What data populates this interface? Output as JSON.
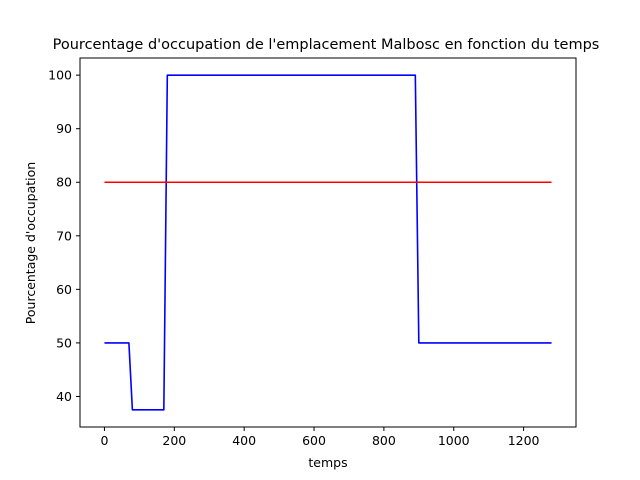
{
  "chart_data": {
    "type": "line",
    "title": "Pourcentage d'occupation de l'emplacement Malbosc en fonction du temps",
    "xlabel": "temps",
    "ylabel": "Pourcentage d'occupation",
    "xlim": [
      -70,
      1350
    ],
    "ylim": [
      34.3,
      103.2
    ],
    "xticks": [
      0,
      200,
      400,
      600,
      800,
      1000,
      1200
    ],
    "yticks": [
      40,
      50,
      60,
      70,
      80,
      90,
      100
    ],
    "grid": false,
    "series": [
      {
        "color": "#0000ff",
        "x": [
          0,
          70,
          80,
          170,
          180,
          890,
          900,
          1280
        ],
        "y": [
          50,
          50,
          37.5,
          37.5,
          100,
          100,
          50,
          50
        ]
      },
      {
        "color": "#ff0000",
        "x": [
          0,
          1280
        ],
        "y": [
          80,
          80
        ]
      }
    ]
  }
}
